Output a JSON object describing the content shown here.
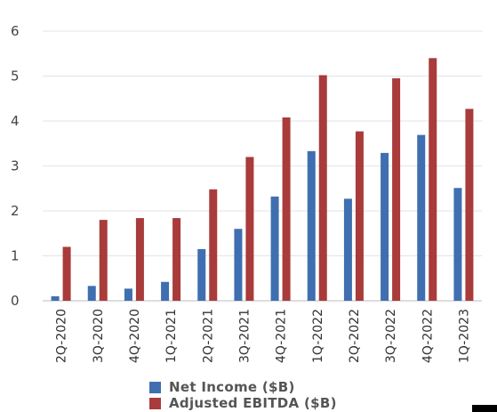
{
  "chart_data": {
    "type": "bar",
    "categories": [
      "2Q-2020",
      "3Q-2020",
      "4Q-2020",
      "1Q-2021",
      "2Q-2021",
      "3Q-2021",
      "4Q-2021",
      "1Q-2022",
      "2Q-2022",
      "3Q-2022",
      "4Q-2022",
      "1Q-2023"
    ],
    "series": [
      {
        "name": "Net Income ($B)",
        "color": "#3f6fb0",
        "values": [
          0.1,
          0.33,
          0.27,
          0.42,
          1.15,
          1.6,
          2.32,
          3.33,
          2.27,
          3.29,
          3.69,
          2.51
        ]
      },
      {
        "name": "Adjusted EBITDA ($B)",
        "color": "#a93b3b",
        "values": [
          1.2,
          1.8,
          1.84,
          1.84,
          2.48,
          3.2,
          4.08,
          5.02,
          3.77,
          4.95,
          5.4,
          4.27
        ]
      }
    ],
    "yticks": [
      0,
      1,
      2,
      3,
      4,
      5,
      6
    ],
    "ylim": [
      0,
      6
    ],
    "title": "",
    "xlabel": "",
    "ylabel": "",
    "grid": "horizontal",
    "legend_position": "bottom"
  }
}
